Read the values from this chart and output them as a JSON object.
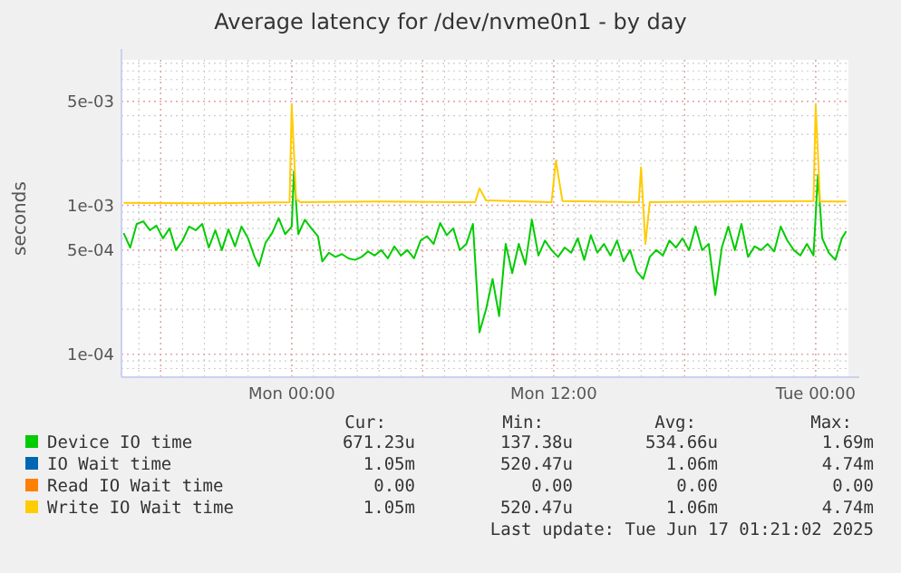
{
  "chart_data": {
    "type": "line",
    "title": "Average latency for /dev/nvme0n1 - by day",
    "ylabel": "seconds",
    "log": "y",
    "grid": true,
    "legend": "bottom",
    "line_style": "solid",
    "xlim": [
      "2025-06-15T16:12",
      "2025-06-17T01:30"
    ],
    "xticks": [
      {
        "value": "2025-06-15T18:00",
        "label": null
      },
      {
        "value": "2025-06-16T00:00",
        "label": "Mon 00:00"
      },
      {
        "value": "2025-06-16T06:00",
        "label": null
      },
      {
        "value": "2025-06-16T12:00",
        "label": "Mon 12:00"
      },
      {
        "value": "2025-06-16T18:00",
        "label": null
      },
      {
        "value": "2025-06-17T00:00",
        "label": "Tue 00:00"
      }
    ],
    "ylim": [
      7e-05,
      0.0095
    ],
    "yticks": [
      {
        "value": 0.0001,
        "label": "1e-04"
      },
      {
        "value": 0.0005,
        "label": "5e-04"
      },
      {
        "value": 0.001,
        "label": "1e-03"
      },
      {
        "value": 0.005,
        "label": "5e-03"
      }
    ],
    "series": [
      {
        "name": "Device IO time",
        "color": "#00cc00",
        "x": [
          "2025-06-15T16:18",
          "2025-06-15T16:36",
          "2025-06-15T16:54",
          "2025-06-15T17:12",
          "2025-06-15T17:30",
          "2025-06-15T17:48",
          "2025-06-15T18:06",
          "2025-06-15T18:24",
          "2025-06-15T18:42",
          "2025-06-15T19:00",
          "2025-06-15T19:18",
          "2025-06-15T19:36",
          "2025-06-15T19:54",
          "2025-06-15T20:12",
          "2025-06-15T20:30",
          "2025-06-15T20:48",
          "2025-06-15T21:06",
          "2025-06-15T21:24",
          "2025-06-15T21:42",
          "2025-06-15T22:00",
          "2025-06-15T22:18",
          "2025-06-15T22:30",
          "2025-06-15T22:48",
          "2025-06-15T23:06",
          "2025-06-15T23:24",
          "2025-06-15T23:42",
          "2025-06-16T00:00",
          "2025-06-16T00:06",
          "2025-06-16T00:18",
          "2025-06-16T00:36",
          "2025-06-16T00:54",
          "2025-06-16T01:12",
          "2025-06-16T01:24",
          "2025-06-16T01:42",
          "2025-06-16T02:00",
          "2025-06-16T02:18",
          "2025-06-16T02:36",
          "2025-06-16T02:54",
          "2025-06-16T03:12",
          "2025-06-16T03:30",
          "2025-06-16T03:48",
          "2025-06-16T04:06",
          "2025-06-16T04:24",
          "2025-06-16T04:42",
          "2025-06-16T05:00",
          "2025-06-16T05:18",
          "2025-06-16T05:36",
          "2025-06-16T05:54",
          "2025-06-16T06:12",
          "2025-06-16T06:30",
          "2025-06-16T06:48",
          "2025-06-16T07:06",
          "2025-06-16T07:24",
          "2025-06-16T07:42",
          "2025-06-16T08:00",
          "2025-06-16T08:18",
          "2025-06-16T08:36",
          "2025-06-16T08:54",
          "2025-06-16T09:12",
          "2025-06-16T09:30",
          "2025-06-16T09:48",
          "2025-06-16T10:06",
          "2025-06-16T10:24",
          "2025-06-16T10:42",
          "2025-06-16T11:00",
          "2025-06-16T11:18",
          "2025-06-16T11:36",
          "2025-06-16T11:54",
          "2025-06-16T12:12",
          "2025-06-16T12:30",
          "2025-06-16T12:48",
          "2025-06-16T13:06",
          "2025-06-16T13:24",
          "2025-06-16T13:42",
          "2025-06-16T14:00",
          "2025-06-16T14:18",
          "2025-06-16T14:36",
          "2025-06-16T14:54",
          "2025-06-16T15:12",
          "2025-06-16T15:30",
          "2025-06-16T15:48",
          "2025-06-16T16:06",
          "2025-06-16T16:24",
          "2025-06-16T16:42",
          "2025-06-16T17:00",
          "2025-06-16T17:18",
          "2025-06-16T17:36",
          "2025-06-16T17:54",
          "2025-06-16T18:12",
          "2025-06-16T18:30",
          "2025-06-16T18:48",
          "2025-06-16T19:06",
          "2025-06-16T19:24",
          "2025-06-16T19:42",
          "2025-06-16T20:00",
          "2025-06-16T20:18",
          "2025-06-16T20:36",
          "2025-06-16T20:54",
          "2025-06-16T21:12",
          "2025-06-16T21:30",
          "2025-06-16T21:48",
          "2025-06-16T22:06",
          "2025-06-16T22:24",
          "2025-06-16T22:42",
          "2025-06-16T23:00",
          "2025-06-16T23:18",
          "2025-06-16T23:36",
          "2025-06-16T23:54",
          "2025-06-17T00:06",
          "2025-06-17T00:18",
          "2025-06-17T00:36",
          "2025-06-17T00:54",
          "2025-06-17T01:12",
          "2025-06-17T01:24"
        ],
        "values": [
          0.00065,
          0.00052,
          0.00075,
          0.00078,
          0.00068,
          0.00073,
          0.0006,
          0.0007,
          0.0005,
          0.00058,
          0.00072,
          0.00068,
          0.00075,
          0.00052,
          0.00068,
          0.0005,
          0.00069,
          0.00053,
          0.00072,
          0.0006,
          0.00045,
          0.00039,
          0.00056,
          0.00065,
          0.00082,
          0.00064,
          0.00072,
          0.00169,
          0.00064,
          0.0008,
          0.0007,
          0.00062,
          0.00042,
          0.00048,
          0.00045,
          0.00047,
          0.00044,
          0.00043,
          0.00045,
          0.00049,
          0.00046,
          0.0005,
          0.00044,
          0.00053,
          0.00046,
          0.0005,
          0.00044,
          0.00058,
          0.00062,
          0.00055,
          0.00076,
          0.00063,
          0.0007,
          0.0005,
          0.00055,
          0.00075,
          0.00014,
          0.0002,
          0.00032,
          0.00018,
          0.00055,
          0.00035,
          0.00055,
          0.0004,
          0.0008,
          0.00046,
          0.00058,
          0.0005,
          0.00045,
          0.00052,
          0.00048,
          0.0006,
          0.00043,
          0.00063,
          0.00048,
          0.00055,
          0.00046,
          0.00058,
          0.00042,
          0.0005,
          0.00036,
          0.00032,
          0.00045,
          0.0005,
          0.00046,
          0.00058,
          0.00052,
          0.0006,
          0.0005,
          0.00072,
          0.0005,
          0.00055,
          0.00025,
          0.00052,
          0.00072,
          0.0005,
          0.00075,
          0.00045,
          0.00053,
          0.0005,
          0.00055,
          0.00049,
          0.00072,
          0.00058,
          0.0005,
          0.00046,
          0.00055,
          0.00046,
          0.0016,
          0.0006,
          0.00048,
          0.00043,
          0.0006,
          0.00067
        ]
      },
      {
        "name": "IO Wait time",
        "color": "#0066b3"
      },
      {
        "name": "Read IO Wait time",
        "color": "#ff8000"
      },
      {
        "name": "Write IO Wait time",
        "color": "#ffcc00",
        "x": [
          "2025-06-15T16:18",
          "2025-06-15T20:00",
          "2025-06-15T23:54",
          "2025-06-16T00:00",
          "2025-06-16T00:12",
          "2025-06-16T00:24",
          "2025-06-16T04:00",
          "2025-06-16T08:24",
          "2025-06-16T08:36",
          "2025-06-16T08:54",
          "2025-06-16T11:54",
          "2025-06-16T12:06",
          "2025-06-16T12:24",
          "2025-06-16T15:54",
          "2025-06-16T16:00",
          "2025-06-16T16:12",
          "2025-06-16T16:24",
          "2025-06-16T20:00",
          "2025-06-16T23:54",
          "2025-06-17T00:00",
          "2025-06-17T00:12",
          "2025-06-17T01:24"
        ],
        "values": [
          0.00104,
          0.00103,
          0.00105,
          0.00474,
          0.0011,
          0.00105,
          0.00106,
          0.00105,
          0.0013,
          0.00108,
          0.00105,
          0.002,
          0.00107,
          0.00105,
          0.0018,
          0.00055,
          0.00105,
          0.00106,
          0.00107,
          0.00474,
          0.00106,
          0.00106
        ]
      }
    ],
    "annotations": [
      "Cur:",
      "Min:",
      "Avg:",
      "Max:",
      "671.23u",
      "137.38u",
      "534.66u",
      "1.69m",
      "1.05m",
      "520.47u",
      "1.06m",
      "4.74m",
      "0.00",
      "0.00",
      "0.00",
      "0.00",
      "1.05m",
      "520.47u",
      "1.06m",
      "4.74m",
      "Last update: Tue Jun 17 01:21:02 2025"
    ]
  }
}
